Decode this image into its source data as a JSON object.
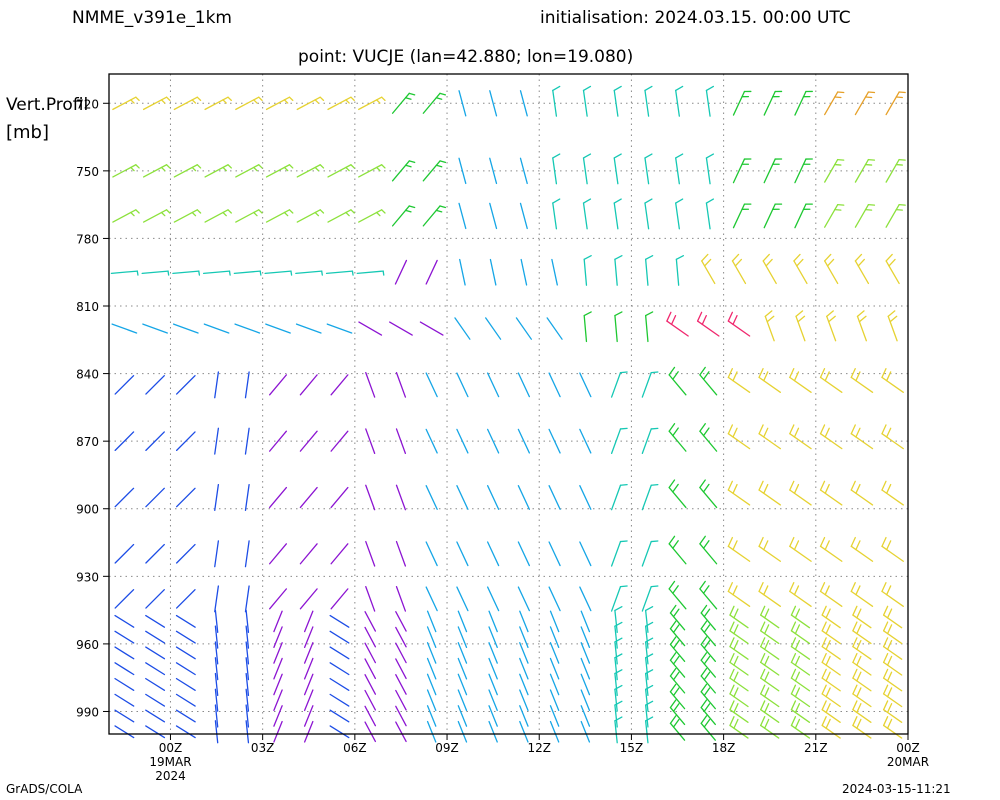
{
  "header": {
    "model": "NMME_v391e_1km",
    "init": "initialisation: 2024.03.15. 00:00 UTC",
    "point": "point: VUCJE (lan=42.880; lon=19.080)"
  },
  "footer": {
    "credit": "GrADS/COLA",
    "timestamp": "2024-03-15-11:21"
  },
  "chart_data": {
    "type": "wind-barb-profile",
    "ylabel": "Vert.Profil",
    "yunit": "[mb]",
    "y_inverted": true,
    "ylim": [
      1000,
      707
    ],
    "yticks": [
      720,
      750,
      780,
      810,
      840,
      870,
      900,
      930,
      960,
      990
    ],
    "xlim_hours": [
      -2,
      24
    ],
    "xticks": [
      {
        "hour": 0,
        "label": "00Z",
        "sub": [
          "19MAR",
          "2024"
        ]
      },
      {
        "hour": 3,
        "label": "03Z",
        "sub": []
      },
      {
        "hour": 6,
        "label": "06Z",
        "sub": []
      },
      {
        "hour": 9,
        "label": "09Z",
        "sub": []
      },
      {
        "hour": 12,
        "label": "12Z",
        "sub": []
      },
      {
        "hour": 15,
        "label": "15Z",
        "sub": []
      },
      {
        "hour": 18,
        "label": "18Z",
        "sub": []
      },
      {
        "hour": 21,
        "label": "21Z",
        "sub": []
      },
      {
        "hour": 24,
        "label": "00Z",
        "sub": [
          "20MAR"
        ]
      }
    ],
    "grid": "dotted",
    "times_hours": [
      -1.5,
      -0.5,
      0.5,
      1.5,
      2.5,
      3.5,
      4.5,
      5.5,
      6.5,
      7.5,
      8.5,
      9.5,
      10.5,
      11.5,
      12.5,
      13.5,
      14.5,
      15.5,
      16.5,
      17.5,
      18.5,
      19.5,
      20.5,
      21.5,
      22.5,
      23.5
    ],
    "levels_mb": [
      720,
      750,
      770,
      795,
      820,
      845,
      870,
      895,
      920,
      940
    ],
    "dense_layer_mb": [
      950,
      1000
    ],
    "colors": {
      "slow": "#1d4de6",
      "purple": "#8c14d2",
      "cyan": "#16a6e6",
      "teal": "#15c8b4",
      "green": "#1ec832",
      "lime": "#8ce13c",
      "yellow": "#e6d232",
      "orange": "#e6a028",
      "red": "#f0286e"
    }
  }
}
